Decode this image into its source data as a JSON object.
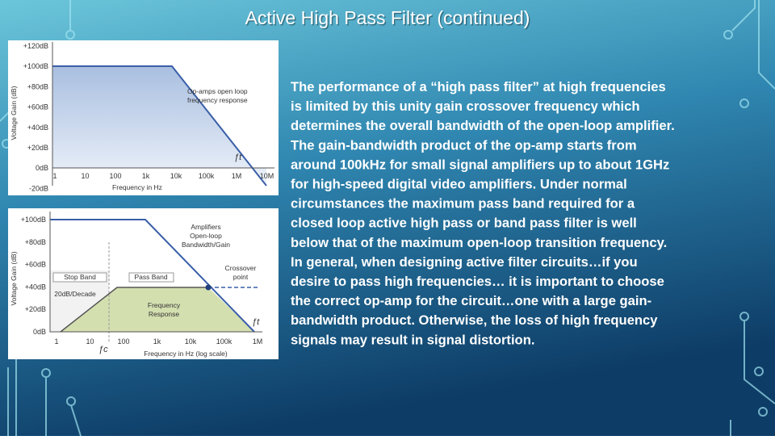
{
  "title": "Active High Pass Filter (continued)",
  "body": {
    "lines": [
      "The performance of a “high pass filter” at high frequencies",
      "is limited by this unity gain crossover frequency which",
      "determines the overall bandwidth of the open-loop amplifier.",
      "The gain-bandwidth product of the op-amp starts from",
      "around 100kHz for small signal amplifiers up to about 1GHz",
      "for high-speed digital video amplifiers. Under normal",
      "circumstances the maximum pass band required for a",
      "closed loop active high pass or band pass filter is well",
      "below that of the maximum open-loop transition frequency.",
      "In general, when designing active filter circuits…if you",
      "desire to pass high frequencies… it is important to choose",
      "the correct op-amp for the circuit…one with a large gain-",
      "bandwidth product. Otherwise, the loss of high frequency",
      "signals may result in signal distortion."
    ]
  },
  "figure_1": {
    "y_axis_label": "Voltage Gain (dB)",
    "x_axis_label": "Frequency in Hz",
    "y_ticks": [
      "+120dB",
      "+100dB",
      "+80dB",
      "+60dB",
      "+40dB",
      "+20dB",
      "0dB",
      "-20dB"
    ],
    "x_ticks": [
      "1",
      "10",
      "100",
      "1k",
      "10k",
      "100k",
      "1M",
      "10M"
    ],
    "annotation": [
      "Op-amps open loop",
      "frequency response"
    ],
    "ft_label": "ƒt"
  },
  "figure_2": {
    "y_axis_label": "Voltage Gain (dB)",
    "x_axis_label": "Frequency in Hz  (log scale)",
    "y_ticks": [
      "+100dB",
      "+80dB",
      "+60dB",
      "+40dB",
      "+20dB",
      "0dB"
    ],
    "x_ticks": [
      "1",
      "10",
      "100",
      "1k",
      "10k",
      "100k",
      "1M"
    ],
    "open_loop_label": [
      "Amplifiers",
      "Open-loop",
      "Bandwidth/Gain"
    ],
    "crossover_label": [
      "Crossover",
      "point"
    ],
    "stop_band": "Stop Band",
    "pass_band": "Pass Band",
    "slope_label": "20dB/Decade",
    "response_label": [
      "Frequency",
      "Response"
    ],
    "ft_label": "ƒt",
    "fc_label": "ƒc"
  }
}
